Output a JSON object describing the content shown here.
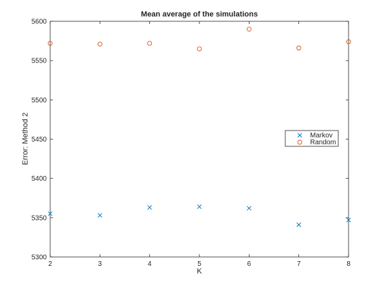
{
  "chart_data": {
    "type": "scatter",
    "title": "Mean average of the simulations",
    "xlabel": "K",
    "ylabel": "Error: Method 2",
    "xlim": [
      2,
      8
    ],
    "ylim": [
      5300,
      5600
    ],
    "xticks": [
      2,
      3,
      4,
      5,
      6,
      7,
      8
    ],
    "yticks": [
      5300,
      5350,
      5400,
      5450,
      5500,
      5550,
      5600
    ],
    "grid": false,
    "legend_position": "middle-right",
    "series": [
      {
        "name": "Markov",
        "marker": "x",
        "color": "#0072BD",
        "x": [
          2,
          3,
          4,
          5,
          6,
          7,
          8
        ],
        "y": [
          5355,
          5353,
          5363,
          5364,
          5362,
          5341,
          5347
        ]
      },
      {
        "name": "Random",
        "marker": "o",
        "color": "#D95319",
        "x": [
          2,
          3,
          4,
          5,
          6,
          7,
          8
        ],
        "y": [
          5572,
          5571,
          5572,
          5565,
          5590,
          5566,
          5574
        ]
      }
    ]
  }
}
